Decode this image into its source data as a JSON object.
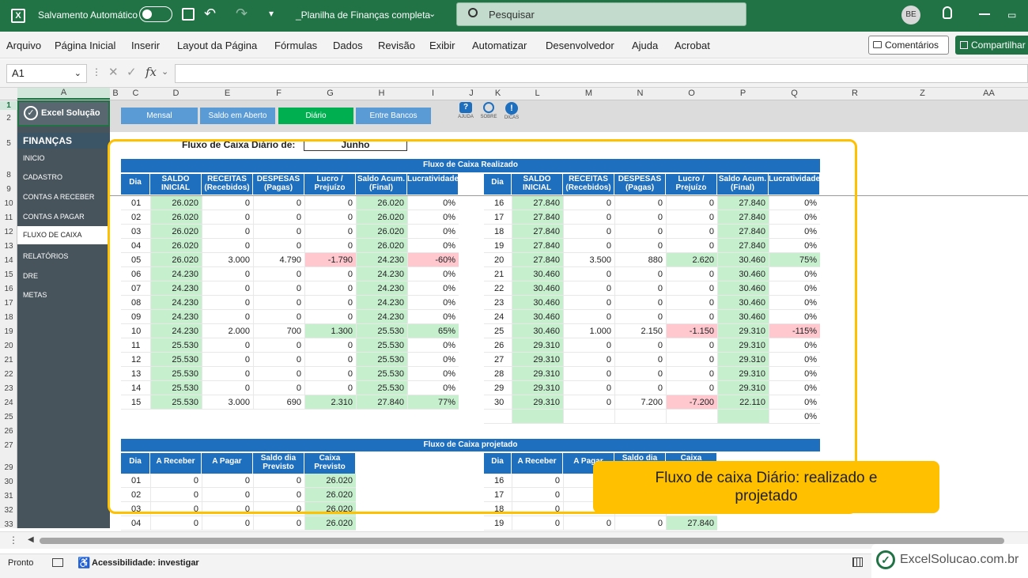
{
  "title_bar": {
    "autosave_label": "Salvamento Automático",
    "file_name": "_Planilha de Finanças completa",
    "search_placeholder": "Pesquisar",
    "user_initials": "BE"
  },
  "ribbon": {
    "tabs": [
      "Arquivo",
      "Página Inicial",
      "Inserir",
      "Layout da Página",
      "Fórmulas",
      "Dados",
      "Revisão",
      "Exibir",
      "Automatizar",
      "Desenvolvedor",
      "Ajuda",
      "Acrobat"
    ],
    "comments_label": "Comentários",
    "share_label": "Compartilhar"
  },
  "formula_bar": {
    "name_box": "A1",
    "fx_label": "fx"
  },
  "columns": [
    "A",
    "B",
    "C",
    "D",
    "E",
    "F",
    "G",
    "H",
    "I",
    "J",
    "K",
    "L",
    "M",
    "N",
    "O",
    "P",
    "Q",
    "R",
    "Z",
    "AA"
  ],
  "rows": [
    "1",
    "2",
    "5",
    "8",
    "9",
    "10",
    "11",
    "12",
    "13",
    "14",
    "15",
    "16",
    "17",
    "18",
    "19",
    "20",
    "21",
    "22",
    "23",
    "24",
    "25",
    "26",
    "27",
    "29",
    "30",
    "31",
    "32",
    "33"
  ],
  "sidebar": {
    "logo": "Excel Solução",
    "section": "FINANÇAS",
    "items": [
      "INICIO",
      "CADASTRO",
      "CONTAS A RECEBER",
      "CONTAS A PAGAR",
      "FLUXO DE CAIXA",
      "RELATÓRIOS",
      "DRE",
      "METAS"
    ]
  },
  "nav_buttons": [
    "Mensal",
    "Saldo em Aberto",
    "Diário",
    "Entre Bancos"
  ],
  "help_icons": [
    "AJUDA",
    "SOBRE",
    "DICAS"
  ],
  "report": {
    "title": "Fluxo de Caixa Diário de:",
    "month": "Junho",
    "realized_title": "Fluxo de Caixa Realizado",
    "projected_title": "Fluxo de Caixa projetado"
  },
  "realized_headers": [
    "Dia",
    "SALDO INICIAL",
    "RECEITAS (Recebidos)",
    "DESPESAS (Pagas)",
    "Lucro / Prejuízo",
    "Saldo Acum. (Final)",
    "Lucratividade"
  ],
  "realized_left": [
    [
      "01",
      "26.020",
      "0",
      "0",
      "0",
      "26.020",
      "0%"
    ],
    [
      "02",
      "26.020",
      "0",
      "0",
      "0",
      "26.020",
      "0%"
    ],
    [
      "03",
      "26.020",
      "0",
      "0",
      "0",
      "26.020",
      "0%"
    ],
    [
      "04",
      "26.020",
      "0",
      "0",
      "0",
      "26.020",
      "0%"
    ],
    [
      "05",
      "26.020",
      "3.000",
      "4.790",
      "-1.790",
      "24.230",
      "-60%"
    ],
    [
      "06",
      "24.230",
      "0",
      "0",
      "0",
      "24.230",
      "0%"
    ],
    [
      "07",
      "24.230",
      "0",
      "0",
      "0",
      "24.230",
      "0%"
    ],
    [
      "08",
      "24.230",
      "0",
      "0",
      "0",
      "24.230",
      "0%"
    ],
    [
      "09",
      "24.230",
      "0",
      "0",
      "0",
      "24.230",
      "0%"
    ],
    [
      "10",
      "24.230",
      "2.000",
      "700",
      "1.300",
      "25.530",
      "65%"
    ],
    [
      "11",
      "25.530",
      "0",
      "0",
      "0",
      "25.530",
      "0%"
    ],
    [
      "12",
      "25.530",
      "0",
      "0",
      "0",
      "25.530",
      "0%"
    ],
    [
      "13",
      "25.530",
      "0",
      "0",
      "0",
      "25.530",
      "0%"
    ],
    [
      "14",
      "25.530",
      "0",
      "0",
      "0",
      "25.530",
      "0%"
    ],
    [
      "15",
      "25.530",
      "3.000",
      "690",
      "2.310",
      "27.840",
      "77%"
    ]
  ],
  "realized_right": [
    [
      "16",
      "27.840",
      "0",
      "0",
      "0",
      "27.840",
      "0%"
    ],
    [
      "17",
      "27.840",
      "0",
      "0",
      "0",
      "27.840",
      "0%"
    ],
    [
      "18",
      "27.840",
      "0",
      "0",
      "0",
      "27.840",
      "0%"
    ],
    [
      "19",
      "27.840",
      "0",
      "0",
      "0",
      "27.840",
      "0%"
    ],
    [
      "20",
      "27.840",
      "3.500",
      "880",
      "2.620",
      "30.460",
      "75%"
    ],
    [
      "21",
      "30.460",
      "0",
      "0",
      "0",
      "30.460",
      "0%"
    ],
    [
      "22",
      "30.460",
      "0",
      "0",
      "0",
      "30.460",
      "0%"
    ],
    [
      "23",
      "30.460",
      "0",
      "0",
      "0",
      "30.460",
      "0%"
    ],
    [
      "24",
      "30.460",
      "0",
      "0",
      "0",
      "30.460",
      "0%"
    ],
    [
      "25",
      "30.460",
      "1.000",
      "2.150",
      "-1.150",
      "29.310",
      "-115%"
    ],
    [
      "26",
      "29.310",
      "0",
      "0",
      "0",
      "29.310",
      "0%"
    ],
    [
      "27",
      "29.310",
      "0",
      "0",
      "0",
      "29.310",
      "0%"
    ],
    [
      "28",
      "29.310",
      "0",
      "0",
      "0",
      "29.310",
      "0%"
    ],
    [
      "29",
      "29.310",
      "0",
      "0",
      "0",
      "29.310",
      "0%"
    ],
    [
      "30",
      "29.310",
      "0",
      "7.200",
      "-7.200",
      "22.110",
      "0%"
    ],
    [
      "",
      "",
      "",
      "",
      "",
      "",
      "0%"
    ]
  ],
  "projected_headers": [
    "Dia",
    "A Receber",
    "A Pagar",
    "Saldo dia Previsto",
    "Caixa Previsto"
  ],
  "projected_left": [
    [
      "01",
      "0",
      "0",
      "0",
      "26.020"
    ],
    [
      "02",
      "0",
      "0",
      "0",
      "26.020"
    ],
    [
      "03",
      "0",
      "0",
      "0",
      "26.020"
    ],
    [
      "04",
      "0",
      "0",
      "0",
      "26.020"
    ]
  ],
  "projected_right": [
    [
      "16",
      "0"
    ],
    [
      "17",
      "0"
    ],
    [
      "18",
      "0"
    ],
    [
      "19",
      "0",
      "0",
      "0",
      "27.840"
    ]
  ],
  "callout": "Fluxo de caixa Diário: realizado e projetado",
  "status": {
    "ready": "Pronto",
    "accessibility": "Acessibilidade: investigar",
    "watermark": "ExcelSolucao.com.br"
  },
  "colors": {
    "excel_green": "#217346",
    "header_blue": "#1f6fbf",
    "positive": "#c6efce",
    "negative": "#ffc7ce",
    "callout": "#ffc000"
  }
}
